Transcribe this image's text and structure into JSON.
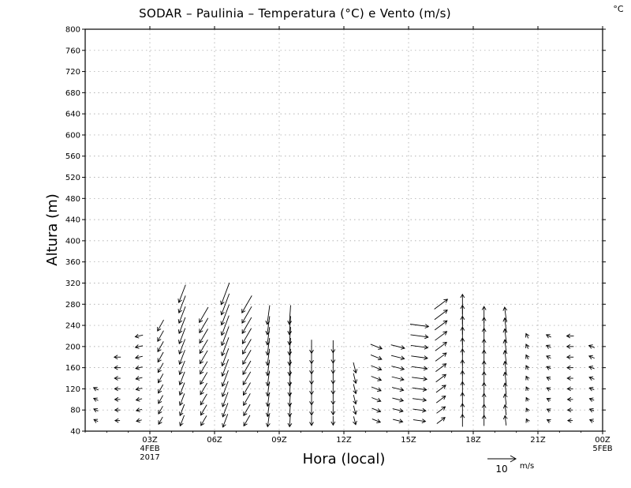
{
  "chart_data": {
    "type": "vector",
    "title": "SODAR  –  Paulinia  –  Temperatura (°C) e Vento (m/s)",
    "corner_label": "°C",
    "xlabel": "Hora (local)",
    "ylabel": "Altura (m)",
    "ylim": [
      40,
      800
    ],
    "xlim": [
      0,
      24
    ],
    "grid": true,
    "y_ticks": [
      40,
      80,
      120,
      160,
      200,
      240,
      280,
      320,
      360,
      400,
      440,
      480,
      520,
      560,
      600,
      640,
      680,
      720,
      760,
      800
    ],
    "x_ticks": [
      {
        "hour": 3,
        "label": "03Z",
        "date": "4FEB",
        "year": "2017"
      },
      {
        "hour": 6,
        "label": "06Z"
      },
      {
        "hour": 9,
        "label": "09Z"
      },
      {
        "hour": 12,
        "label": "12Z"
      },
      {
        "hour": 15,
        "label": "15Z"
      },
      {
        "hour": 18,
        "label": "18Z"
      },
      {
        "hour": 21,
        "label": "21Z"
      },
      {
        "hour": 24,
        "label": "00Z",
        "date": "5FEB"
      }
    ],
    "reference_vector": {
      "speed": 10,
      "number": "10",
      "unit": "m/s"
    },
    "heights_m": [
      60,
      80,
      100,
      120,
      140,
      160,
      180,
      200,
      220,
      240,
      260,
      280,
      300
    ],
    "wind_profiles": [
      {
        "hour": 0.0,
        "top": 120,
        "u": -1.0,
        "v": 0.5
      },
      {
        "hour": 1.0,
        "top": 180,
        "u": -1.2,
        "v": 0.0
      },
      {
        "hour": 2.0,
        "top": 220,
        "u": -1.3,
        "v": -0.3
      },
      {
        "hour": 3.0,
        "top": 240,
        "u": -1.0,
        "v": -1.8
      },
      {
        "hour": 4.0,
        "top": 300,
        "u": -1.0,
        "v": -2.6
      },
      {
        "hour": 5.0,
        "top": 260,
        "u": -1.4,
        "v": -2.4
      },
      {
        "hour": 6.0,
        "top": 320,
        "u": -1.2,
        "v": -3.2
      },
      {
        "hour": 7.0,
        "top": 280,
        "u": -1.5,
        "v": -2.6
      },
      {
        "hour": 8.0,
        "top": 260,
        "u": -0.4,
        "v": -3.0
      },
      {
        "hour": 9.0,
        "top": 260,
        "u": -0.2,
        "v": -3.0
      },
      {
        "hour": 10.0,
        "top": 200,
        "u": 0.0,
        "v": -2.4
      },
      {
        "hour": 11.0,
        "top": 200,
        "u": 0.0,
        "v": -2.2
      },
      {
        "hour": 12.0,
        "top": 160,
        "u": 0.5,
        "v": -2.0
      },
      {
        "hour": 13.0,
        "top": 200,
        "u": 2.0,
        "v": -0.8
      },
      {
        "hour": 14.0,
        "top": 200,
        "u": 2.4,
        "v": -0.6
      },
      {
        "hour": 15.0,
        "top": 240,
        "u": 3.0,
        "v": -0.4
      },
      {
        "hour": 16.0,
        "top": 280,
        "u": 2.0,
        "v": 1.5
      },
      {
        "hour": 17.0,
        "top": 280,
        "u": 0.0,
        "v": 3.0
      },
      {
        "hour": 18.0,
        "top": 260,
        "u": 0.0,
        "v": 2.6
      },
      {
        "hour": 19.0,
        "top": 260,
        "u": -0.3,
        "v": 2.4
      },
      {
        "hour": 20.0,
        "top": 220,
        "u": -0.4,
        "v": 0.8
      },
      {
        "hour": 21.0,
        "top": 220,
        "u": -0.8,
        "v": 0.4
      },
      {
        "hour": 22.0,
        "top": 220,
        "u": -1.2,
        "v": 0.0
      },
      {
        "hour": 23.0,
        "top": 200,
        "u": -1.0,
        "v": 0.4
      }
    ]
  }
}
